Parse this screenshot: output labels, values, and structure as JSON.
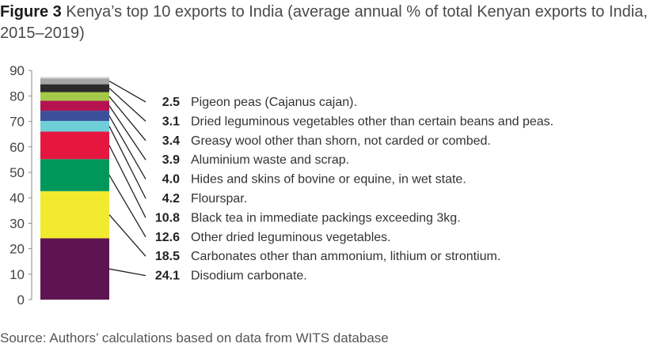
{
  "figure": {
    "label": "Figure 3",
    "title": "Kenya’s top 10 exports to India (average annual % of total Kenyan exports to India, 2015–2019)",
    "source": "Source: Authors’ calculations based on data from WITS database"
  },
  "chart_data": {
    "type": "bar",
    "stacked": true,
    "ylim": [
      0,
      90
    ],
    "yticks": [
      "0",
      "10",
      "20",
      "30",
      "40",
      "50",
      "60",
      "70",
      "80",
      "90"
    ],
    "grid": false,
    "legend": "right",
    "total_unlabeled_segment_color": "#a6a6a6",
    "series": [
      {
        "name": "Disodium carbonate.",
        "value": 24.1,
        "label": "24.1",
        "color": "#5e1450"
      },
      {
        "name": "Carbonates other than ammonium, lithium or strontium.",
        "value": 18.5,
        "label": "18.5",
        "color": "#f2ea2f"
      },
      {
        "name": "Other dried leguminous vegetables.",
        "value": 12.6,
        "label": "12.6",
        "color": "#00975a"
      },
      {
        "name": "Black tea in immediate packings exceeding 3kg.",
        "value": 10.8,
        "label": "10.8",
        "color": "#e5173f"
      },
      {
        "name": "Flourspar.",
        "value": 4.2,
        "label": "4.2",
        "color": "#6fcfd9"
      },
      {
        "name": "Hides and skins of bovine or equine, in wet state.",
        "value": 4.0,
        "label": "4.0",
        "color": "#3c4f9a"
      },
      {
        "name": "Aluminium waste and scrap.",
        "value": 3.9,
        "label": "3.9",
        "color": "#b5124f"
      },
      {
        "name": "Greasy wool other than shorn, not carded or combed.",
        "value": 3.4,
        "label": "3.4",
        "color": "#a5c94a"
      },
      {
        "name": "Dried leguminous vegetables other than certain beans and peas.",
        "value": 3.1,
        "label": "3.1",
        "color": "#2b2b2b"
      },
      {
        "name": "Pigeon peas (Cajanus cajan).",
        "value": 2.5,
        "label": "2.5",
        "color": "#a6a6a6"
      }
    ]
  }
}
